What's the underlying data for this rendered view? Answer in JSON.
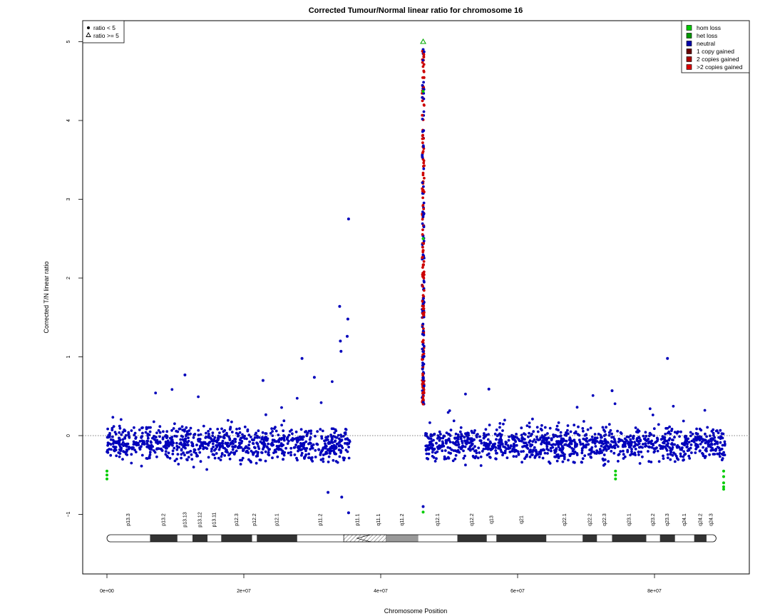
{
  "chart_data": {
    "type": "scatter",
    "title": "Corrected Tumour/Normal linear ratio for chromosome  16",
    "xlabel": "Chromosome Position",
    "ylabel": "Corrected T/N linear ratio",
    "xlim": [
      -3000000,
      94000000
    ],
    "ylim": [
      -1.8,
      5.3
    ],
    "x_ticks": [
      {
        "value": 0,
        "label": "0e+00"
      },
      {
        "value": 20000000,
        "label": "2e+07"
      },
      {
        "value": 40000000,
        "label": "4e+07"
      },
      {
        "value": 60000000,
        "label": "6e+07"
      },
      {
        "value": 80000000,
        "label": "8e+07"
      }
    ],
    "y_ticks": [
      {
        "value": -1,
        "label": "−1"
      },
      {
        "value": 0,
        "label": "0"
      },
      {
        "value": 1,
        "label": "1"
      },
      {
        "value": 2,
        "label": "2"
      },
      {
        "value": 3,
        "label": "3"
      },
      {
        "value": 4,
        "label": "4"
      },
      {
        "value": 5,
        "label": "5"
      }
    ],
    "reference_line": {
      "y": 0,
      "style": "dotted"
    },
    "shape_legend": [
      {
        "label": "ratio < 5",
        "marker": "dot"
      },
      {
        "label": "ratio >= 5",
        "marker": "triangle"
      }
    ],
    "color_legend": [
      {
        "label": "hom loss",
        "color": "#00cc00"
      },
      {
        "label": "het loss",
        "color": "#009900"
      },
      {
        "label": "neutral",
        "color": "#0000aa"
      },
      {
        "label": "1 copy gained",
        "color": "#660000"
      },
      {
        "label": "2 copies gained",
        "color": "#aa0000"
      },
      {
        "label": ">2 copies gained",
        "color": "#dd0000"
      }
    ],
    "series": [
      {
        "name": "neutral",
        "color": "#0000bb",
        "segments": [
          {
            "x_start": 0,
            "x_end": 35500000,
            "center": -0.1,
            "spread": 0.36
          },
          {
            "x_start": 46500000,
            "x_end": 90300000,
            "center": -0.1,
            "spread": 0.36
          }
        ],
        "points": [
          {
            "x": 35300000,
            "y": 2.75
          },
          {
            "x": 34000000,
            "y": 1.64
          },
          {
            "x": 35200000,
            "y": 1.48
          },
          {
            "x": 35100000,
            "y": 1.26
          },
          {
            "x": 28500000,
            "y": 0.98
          },
          {
            "x": 34100000,
            "y": 1.2
          },
          {
            "x": 34200000,
            "y": 1.07
          },
          {
            "x": 11400000,
            "y": 0.77
          },
          {
            "x": 30300000,
            "y": 0.74
          },
          {
            "x": 22800000,
            "y": 0.7
          },
          {
            "x": 81900000,
            "y": 0.98
          },
          {
            "x": 55800000,
            "y": 0.59
          },
          {
            "x": 73800000,
            "y": 0.57
          },
          {
            "x": 34300000,
            "y": -0.78
          },
          {
            "x": 35300000,
            "y": -0.98
          },
          {
            "x": 32300000,
            "y": -0.72
          },
          {
            "x": 46200000,
            "y": 4.9
          },
          {
            "x": 46200000,
            "y": 4.85
          },
          {
            "x": 46200000,
            "y": -0.9
          }
        ]
      },
      {
        "name": "2 copies gained",
        "color": "#cc0000",
        "column": {
          "x": 46200000,
          "y_min": 0.4,
          "y_max": 4.95
        }
      },
      {
        "name": "hom loss",
        "color": "#00cc00",
        "points": [
          {
            "x": 0,
            "y": -0.45
          },
          {
            "x": 0,
            "y": -0.5
          },
          {
            "x": 0,
            "y": -0.55
          },
          {
            "x": 74300000,
            "y": -0.45
          },
          {
            "x": 74300000,
            "y": -0.5
          },
          {
            "x": 74300000,
            "y": -0.55
          },
          {
            "x": 90100000,
            "y": -0.45
          },
          {
            "x": 90100000,
            "y": -0.52
          },
          {
            "x": 90100000,
            "y": -0.6
          },
          {
            "x": 90100000,
            "y": -0.65
          },
          {
            "x": 90100000,
            "y": -0.68
          },
          {
            "x": 46200000,
            "y": 4.37
          },
          {
            "x": 46200000,
            "y": -0.97
          },
          {
            "x": 46200000,
            "y": 2.5
          }
        ]
      },
      {
        "name": "ratio >= 5",
        "color": "#00aa00",
        "marker": "triangle",
        "points": [
          {
            "x": 46200000,
            "y": 5.0
          }
        ]
      }
    ],
    "ideogram": {
      "centromere": 36500000,
      "bands": [
        {
          "name": "p13.3",
          "start": 0,
          "end": 6300000,
          "stain": "gneg"
        },
        {
          "name": "p13.2",
          "start": 6300000,
          "end": 10300000,
          "stain": "gpos"
        },
        {
          "name": "p13.13",
          "start": 10300000,
          "end": 12500000,
          "stain": "gneg"
        },
        {
          "name": "p13.12",
          "start": 12500000,
          "end": 14700000,
          "stain": "gpos"
        },
        {
          "name": "p13.11",
          "start": 14700000,
          "end": 16700000,
          "stain": "gneg"
        },
        {
          "name": "p12.3",
          "start": 16700000,
          "end": 21200000,
          "stain": "gpos"
        },
        {
          "name": "p12.2",
          "start": 21200000,
          "end": 21900000,
          "stain": "gneg"
        },
        {
          "name": "p12.1",
          "start": 21900000,
          "end": 27800000,
          "stain": "gpos"
        },
        {
          "name": "p11.2",
          "start": 27800000,
          "end": 34600000,
          "stain": "gneg"
        },
        {
          "name": "p11.1",
          "start": 34600000,
          "end": 38600000,
          "stain": "acen"
        },
        {
          "name": "q11.1",
          "start": 38600000,
          "end": 40800000,
          "stain": "acen"
        },
        {
          "name": "q11.2",
          "start": 40800000,
          "end": 45500000,
          "stain": "gvar"
        },
        {
          "name": "q12.1",
          "start": 45500000,
          "end": 51200000,
          "stain": "gneg"
        },
        {
          "name": "q12.2",
          "start": 51200000,
          "end": 55500000,
          "stain": "gpos"
        },
        {
          "name": "q13",
          "start": 55500000,
          "end": 56900000,
          "stain": "gneg"
        },
        {
          "name": "q21",
          "start": 56900000,
          "end": 64200000,
          "stain": "gpos"
        },
        {
          "name": "q22.1",
          "start": 64200000,
          "end": 69500000,
          "stain": "gneg"
        },
        {
          "name": "q22.2",
          "start": 69500000,
          "end": 71600000,
          "stain": "gpos"
        },
        {
          "name": "q22.3",
          "start": 71600000,
          "end": 73800000,
          "stain": "gneg"
        },
        {
          "name": "q23.1",
          "start": 73800000,
          "end": 78800000,
          "stain": "gpos"
        },
        {
          "name": "q23.2",
          "start": 78800000,
          "end": 80800000,
          "stain": "gneg"
        },
        {
          "name": "q23.3",
          "start": 80800000,
          "end": 83000000,
          "stain": "gpos"
        },
        {
          "name": "q24.1",
          "start": 83000000,
          "end": 85800000,
          "stain": "gneg"
        },
        {
          "name": "q24.2",
          "start": 85800000,
          "end": 87600000,
          "stain": "gpos"
        },
        {
          "name": "q24.3",
          "start": 87600000,
          "end": 89000000,
          "stain": "gneg"
        }
      ]
    }
  }
}
